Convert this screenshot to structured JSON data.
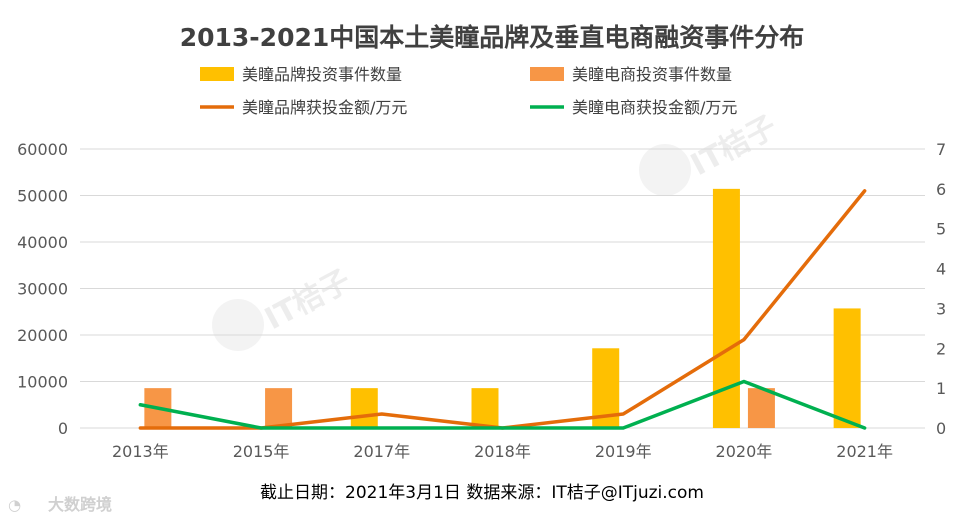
{
  "chart_data": {
    "type": "bar",
    "title": "2013-2021中国本土美瞳品牌及垂直电商融资事件分布",
    "categories": [
      "2013年",
      "2015年",
      "2017年",
      "2018年",
      "2019年",
      "2020年",
      "2021年"
    ],
    "series": [
      {
        "name": "美瞳品牌投资事件数量",
        "type": "bar",
        "axis": "right",
        "color": "#FFC000",
        "values": [
          0,
          0,
          1,
          1,
          2,
          6,
          3
        ]
      },
      {
        "name": "美瞳电商投资事件数量",
        "type": "bar",
        "axis": "right",
        "color": "#F79646",
        "values": [
          1,
          1,
          0,
          0,
          0,
          1,
          0
        ]
      },
      {
        "name": "美瞳品牌获投金额/万元",
        "type": "line",
        "axis": "left",
        "color": "#E46C0A",
        "values": [
          0,
          0,
          3000,
          0,
          3000,
          19000,
          51000
        ]
      },
      {
        "name": "美瞳电商获投金额/万元",
        "type": "line",
        "axis": "left",
        "color": "#00B050",
        "values": [
          5000,
          0,
          0,
          0,
          0,
          10000,
          0
        ]
      }
    ],
    "y_left": {
      "ylim": [
        0,
        60000
      ],
      "ticks": [
        "0",
        "10000",
        "20000",
        "30000",
        "40000",
        "50000",
        "60000"
      ]
    },
    "y_right": {
      "ylim": [
        0,
        7
      ],
      "ticks": [
        "0",
        "1",
        "2",
        "3",
        "4",
        "5",
        "6",
        "7"
      ]
    },
    "grid": true,
    "legend_position": "top"
  },
  "footer": {
    "note": "截止日期：2021年3月1日  数据来源：IT桔子@ITjuzi.com"
  },
  "watermark": {
    "brand": "IT桔子",
    "sub": "ITjuzi.com",
    "corner_brand": "大数跨境"
  }
}
